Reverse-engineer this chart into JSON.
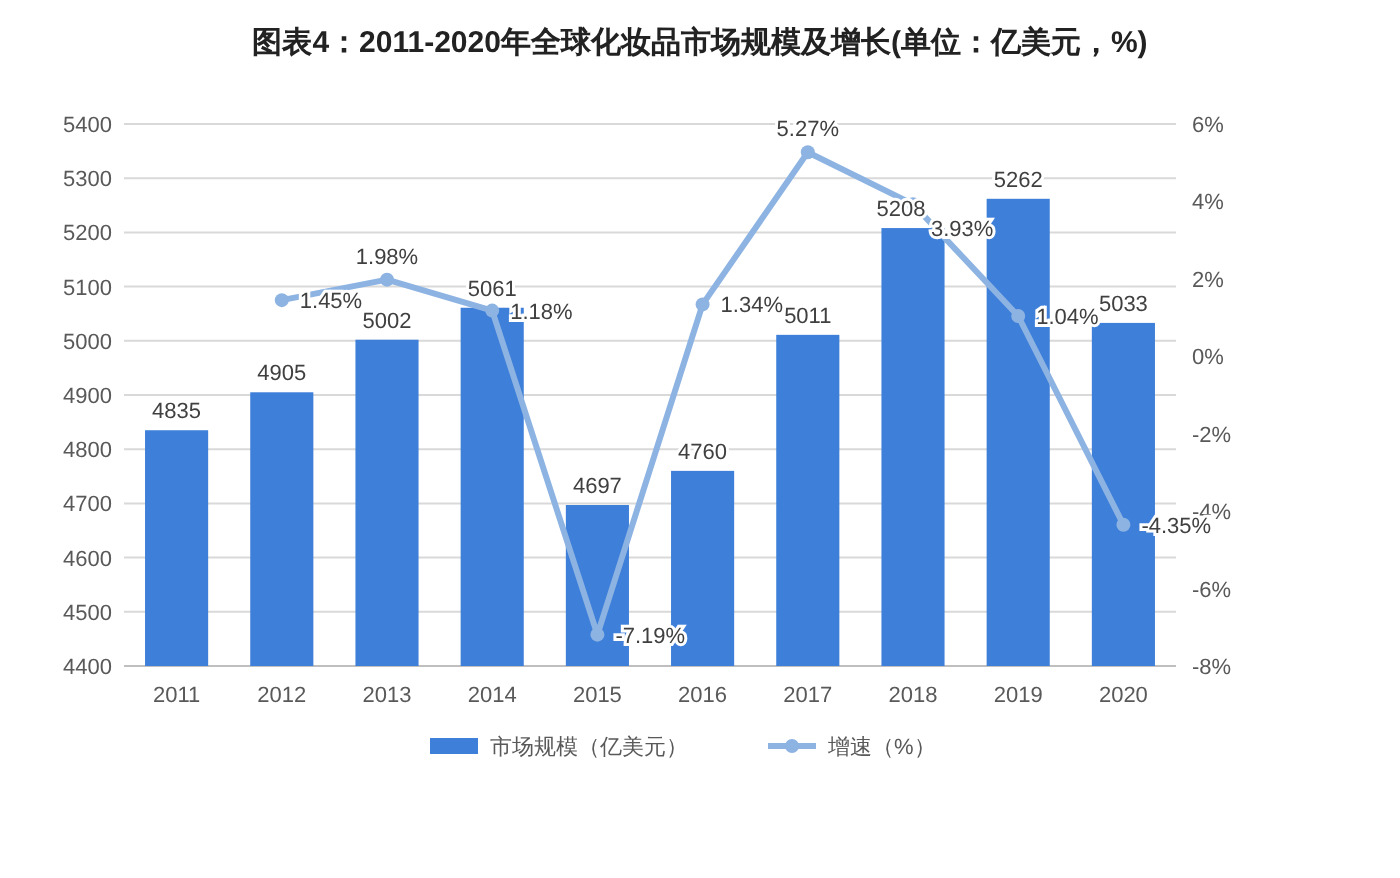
{
  "chart_data": {
    "type": "bar",
    "title": "图表4：2011-2020年全球化妆品市场规模及增长(单位：亿美元，%)",
    "categories": [
      "2011",
      "2012",
      "2013",
      "2014",
      "2015",
      "2016",
      "2017",
      "2018",
      "2019",
      "2020"
    ],
    "series": [
      {
        "name": "市场规模（亿美元）",
        "color": "#3d7fd9",
        "values": [
          4835,
          4905,
          5002,
          5061,
          4697,
          4760,
          5011,
          5208,
          5262,
          5033
        ],
        "value_labels": [
          "4835",
          "4905",
          "5002",
          "5061",
          "4697",
          "4760",
          "5011",
          "5208",
          "5262",
          "5033"
        ]
      },
      {
        "name": "增速（%）",
        "type": "line",
        "axis": "y2",
        "color": "#8db3e2",
        "marker": "circle",
        "values": [
          null,
          1.45,
          1.98,
          1.18,
          -7.19,
          1.34,
          5.27,
          3.93,
          1.04,
          -4.35
        ],
        "value_labels": [
          null,
          "1.45%",
          "1.98%",
          "1.18%",
          "-7.19%",
          "1.34%",
          "5.27%",
          "3.93%",
          "1.04%",
          "-4.35%"
        ]
      }
    ],
    "ylim": [
      4400,
      5400
    ],
    "yticks": [
      4400,
      4500,
      4600,
      4700,
      4800,
      4900,
      5000,
      5100,
      5200,
      5300,
      5400
    ],
    "y2lim": [
      -8,
      6
    ],
    "y2ticks": [
      {
        "value": -8,
        "label": "-8%"
      },
      {
        "value": -6,
        "label": "-6%"
      },
      {
        "value": -4,
        "label": "-4%"
      },
      {
        "value": -2,
        "label": "-2%"
      },
      {
        "value": 0,
        "label": "0%"
      },
      {
        "value": 2,
        "label": "2%"
      },
      {
        "value": 4,
        "label": "4%"
      },
      {
        "value": 6,
        "label": "6%"
      }
    ],
    "grid": "y",
    "legend": "bottom"
  }
}
